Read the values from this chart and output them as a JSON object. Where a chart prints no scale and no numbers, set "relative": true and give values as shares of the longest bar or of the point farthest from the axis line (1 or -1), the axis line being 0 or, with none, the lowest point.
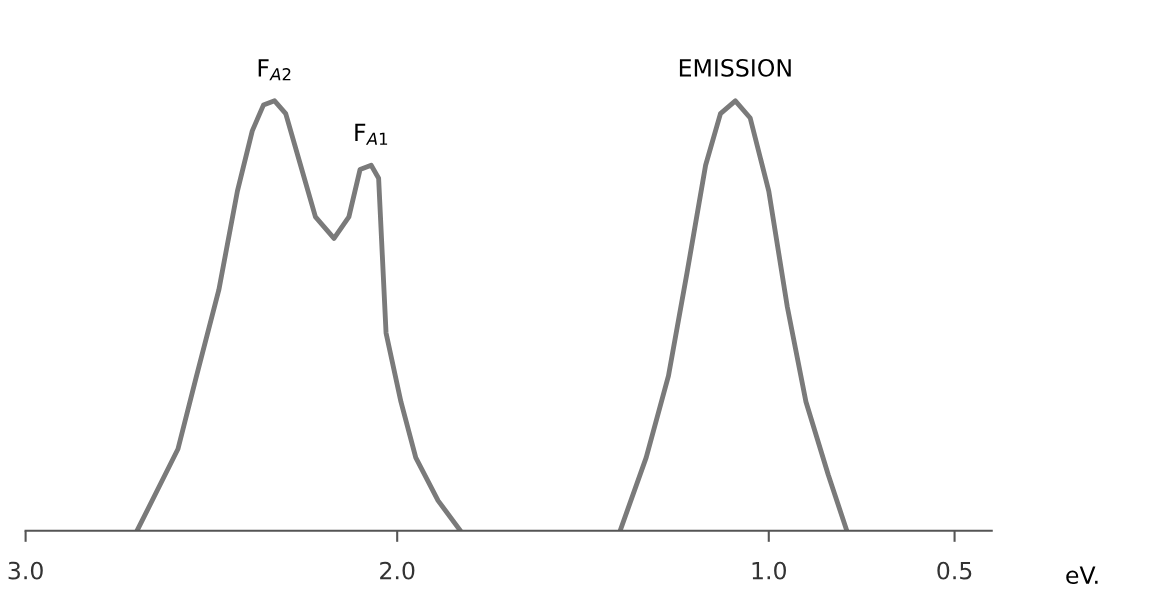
{
  "chart_data": {
    "type": "line",
    "relative": true,
    "xlabel": "eV.",
    "xlim": [
      3.0,
      0.4
    ],
    "xticks": [
      {
        "value": 3.0,
        "label": "3.0"
      },
      {
        "value": 2.0,
        "label": "2.0"
      },
      {
        "value": 1.0,
        "label": "1.0"
      },
      {
        "value": 0.5,
        "label": "0.5"
      }
    ],
    "series": [
      {
        "color": "#7a7a7a",
        "x": [
          2.7,
          2.59,
          2.54,
          2.48,
          2.43,
          2.39,
          2.36,
          2.33,
          2.3,
          2.26,
          2.22,
          2.17,
          2.13,
          2.1,
          2.07,
          2.05,
          2.03,
          1.99,
          1.95,
          1.89,
          1.83
        ],
        "values": [
          0,
          0.19,
          0.36,
          0.56,
          0.79,
          0.93,
          0.99,
          1.0,
          0.97,
          0.85,
          0.73,
          0.68,
          0.73,
          0.84,
          0.85,
          0.82,
          0.46,
          0.3,
          0.17,
          0.07,
          0
        ]
      },
      {
        "color": "#7a7a7a",
        "x": [
          1.4,
          1.33,
          1.27,
          1.22,
          1.17,
          1.13,
          1.09,
          1.05,
          1.0,
          0.95,
          0.9,
          0.84,
          0.79
        ],
        "values": [
          0,
          0.17,
          0.36,
          0.6,
          0.85,
          0.97,
          1.0,
          0.96,
          0.79,
          0.52,
          0.3,
          0.13,
          0
        ]
      }
    ],
    "annotations": [
      {
        "text": "F$_{A2}$",
        "x": 2.33,
        "y": 1.0
      },
      {
        "text": "F$_{A1}$",
        "x": 2.07,
        "y": 0.85
      },
      {
        "text": "EMISSION",
        "x": 1.09,
        "y": 1.0
      }
    ],
    "grid": false,
    "legend": false,
    "marker": "none",
    "line_style": "solid"
  }
}
